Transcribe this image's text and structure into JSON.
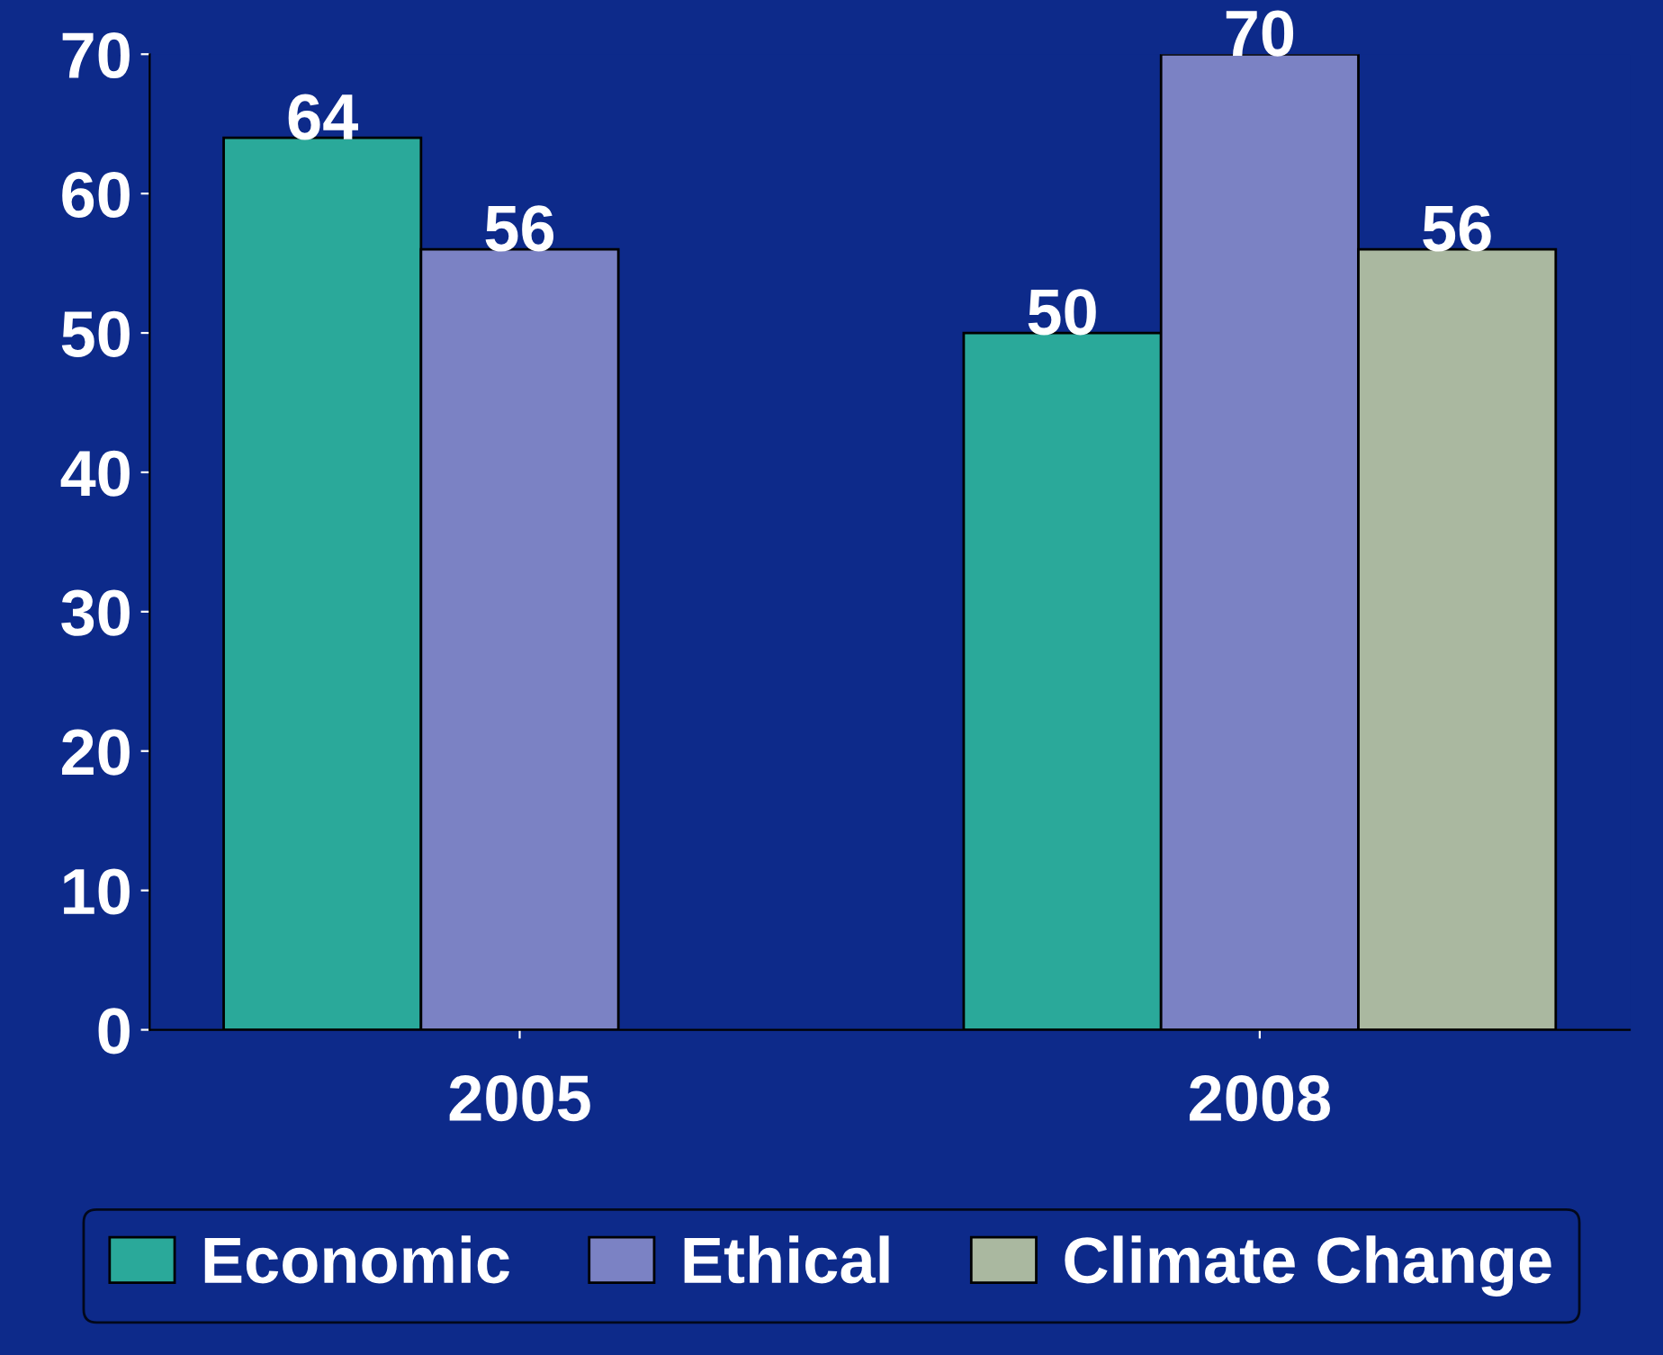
{
  "chart_data": {
    "type": "bar",
    "categories": [
      "2005",
      "2008"
    ],
    "series": [
      {
        "name": "Economic",
        "color": "#2aa99a",
        "values": [
          64,
          50
        ]
      },
      {
        "name": "Ethical",
        "color": "#7b82c4",
        "values": [
          56,
          70
        ]
      },
      {
        "name": "Climate Change",
        "color": "#aab8a0",
        "values": [
          null,
          56
        ]
      }
    ],
    "ylim": [
      0,
      70
    ],
    "yticks": [
      0,
      10,
      20,
      30,
      40,
      50,
      60,
      70
    ],
    "data_labels": true,
    "legend": "bottom",
    "grid": false
  }
}
